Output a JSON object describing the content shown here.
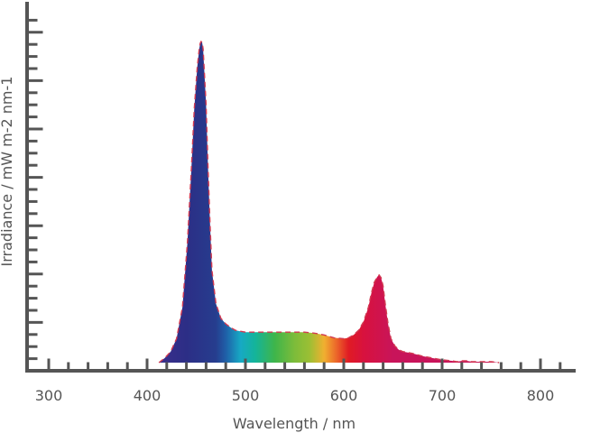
{
  "chart_data": {
    "type": "area",
    "title": "",
    "xlabel": "Wavelength / nm",
    "ylabel": "Irradiance / mW m-2 nm-1",
    "xlim": [
      280,
      830
    ],
    "ylim": [
      0,
      360
    ],
    "grid": false,
    "legend": "none",
    "x_ticks": [
      300,
      400,
      500,
      600,
      700,
      800
    ],
    "y_ticks_labeled": false,
    "x": [
      412,
      418,
      424,
      430,
      436,
      441,
      445,
      448,
      451,
      453,
      454,
      455,
      456,
      457,
      458,
      460,
      462,
      464,
      466,
      470,
      475,
      480,
      485,
      490,
      500,
      510,
      520,
      530,
      540,
      550,
      560,
      570,
      580,
      590,
      600,
      605,
      610,
      615,
      620,
      625,
      628,
      631,
      634,
      636,
      638,
      640,
      642,
      645,
      648,
      652,
      656,
      660,
      670,
      680,
      690,
      700,
      710,
      715,
      720,
      725,
      730,
      740,
      750,
      758
    ],
    "y": [
      0,
      5,
      12,
      26,
      60,
      130,
      210,
      275,
      320,
      340,
      346,
      348,
      347,
      340,
      320,
      280,
      210,
      150,
      100,
      64,
      48,
      42,
      38,
      35,
      33,
      33,
      33,
      33,
      33,
      33,
      33,
      32,
      30,
      27,
      26,
      27,
      30,
      35,
      44,
      60,
      75,
      87,
      93,
      95,
      92,
      83,
      65,
      42,
      26,
      18,
      14,
      12,
      10,
      7,
      5,
      3,
      2,
      1,
      2,
      2,
      1,
      1,
      1,
      0
    ],
    "colors": {
      "peak_line": "#d23a52",
      "axis": "#555555"
    }
  }
}
